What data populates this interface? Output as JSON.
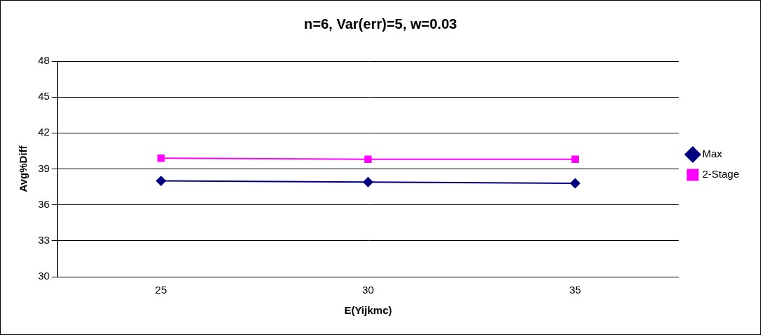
{
  "chart_data": {
    "type": "line",
    "title": "n=6, Var(err)=5, w=0.03",
    "x_label": "E(Yijkmc)",
    "y_label": "Avg%Diff",
    "categories": [
      "25",
      "30",
      "35"
    ],
    "series": [
      {
        "name": "Max",
        "color": "#000080",
        "marker": "diamond",
        "line_style": "solid",
        "values": [
          38.0,
          37.9,
          37.8
        ]
      },
      {
        "name": "2-Stage",
        "color": "#ff00ff",
        "marker": "square",
        "line_style": "solid",
        "values": [
          39.9,
          39.8,
          39.8
        ]
      }
    ],
    "ylim": [
      30,
      48
    ],
    "yticks": [
      30,
      33,
      36,
      39,
      42,
      45,
      48
    ],
    "grid": true,
    "legend": "right"
  }
}
